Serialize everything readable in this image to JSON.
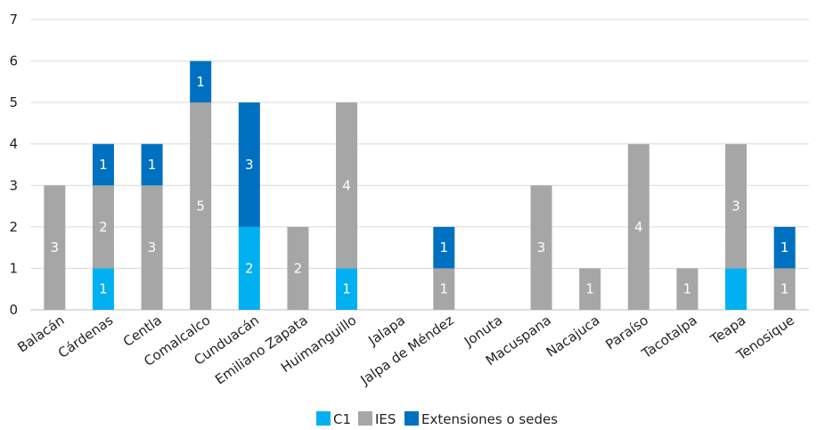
{
  "chart_data": {
    "type": "bar",
    "stacked": true,
    "categories": [
      "Balacán",
      "Cárdenas",
      "Centla",
      "Comalcalco",
      "Cunduacán",
      "Emiliano Zapata",
      "Huimanguillo",
      "Jalapa",
      "Jalpa de Méndez",
      "Jonuta",
      "Macuspana",
      "Nacajuca",
      "Paraíso",
      "Tacotalpa",
      "Teapa",
      "Tenosique"
    ],
    "series": [
      {
        "name": "C1",
        "color": "#00b0f0",
        "values": [
          0,
          1,
          0,
          0,
          2,
          0,
          1,
          0,
          0,
          0,
          0,
          0,
          0,
          0,
          1,
          0
        ],
        "labels": [
          "",
          "1",
          "",
          "",
          "2",
          "",
          "1",
          "",
          "",
          "",
          "",
          "",
          "",
          "",
          "",
          ""
        ]
      },
      {
        "name": "IES",
        "color": "#a6a6a6",
        "values": [
          3,
          2,
          3,
          5,
          0,
          2,
          4,
          0,
          1,
          0,
          3,
          1,
          4,
          1,
          3,
          1
        ],
        "labels": [
          "3",
          "2",
          "3",
          "5",
          "",
          "2",
          "4",
          "",
          "1",
          "",
          "3",
          "1",
          "4",
          "1",
          "3",
          "1"
        ]
      },
      {
        "name": "Extensiones o sedes",
        "color": "#0070c0",
        "values": [
          0,
          1,
          1,
          1,
          3,
          0,
          0,
          0,
          1,
          0,
          0,
          0,
          0,
          0,
          0,
          1
        ],
        "labels": [
          "",
          "1",
          "1",
          "1",
          "3",
          "",
          "",
          "",
          "1",
          "",
          "",
          "",
          "",
          "",
          "",
          "1"
        ]
      }
    ],
    "ylim": [
      0,
      7
    ],
    "yticks": [
      "0",
      "1",
      "2",
      "3",
      "4",
      "5",
      "6",
      "7"
    ],
    "title": "",
    "xlabel": "",
    "ylabel": "",
    "grid": true,
    "legend_position": "bottom"
  }
}
